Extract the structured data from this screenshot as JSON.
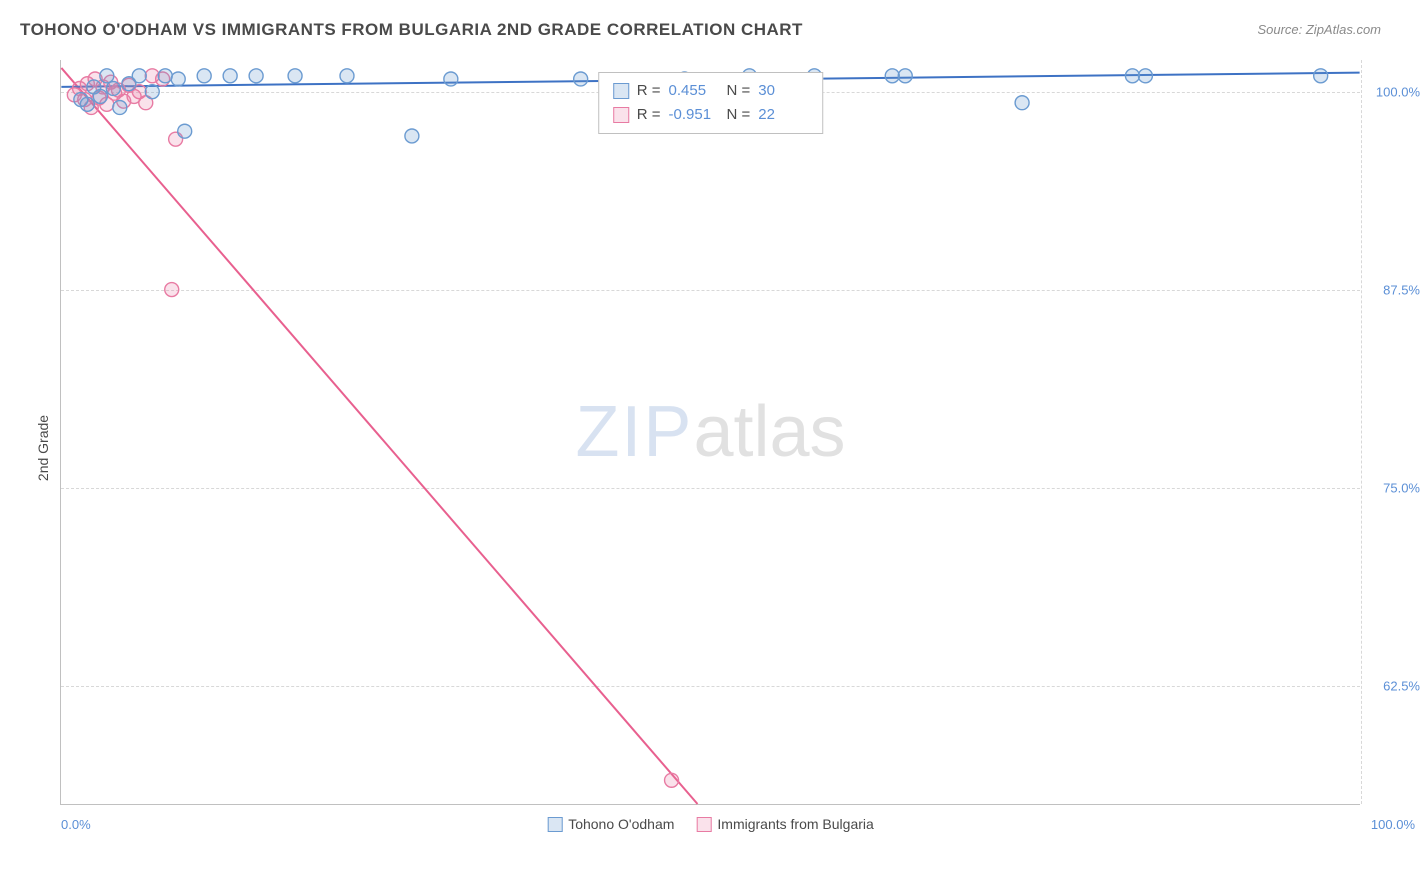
{
  "title": "TOHONO O'ODHAM VS IMMIGRANTS FROM BULGARIA 2ND GRADE CORRELATION CHART",
  "source": "Source: ZipAtlas.com",
  "ylabel": "2nd Grade",
  "watermark": {
    "part1": "ZIP",
    "part2": "atlas"
  },
  "chart": {
    "type": "scatter",
    "xlim": [
      0,
      100
    ],
    "ylim": [
      55,
      102
    ],
    "background_color": "#ffffff",
    "grid_color": "#d8d8d8",
    "axis_color": "#c0c0c0",
    "tick_color": "#5b8fd6",
    "y_ticks": [
      {
        "value": 100.0,
        "label": "100.0%"
      },
      {
        "value": 87.5,
        "label": "87.5%"
      },
      {
        "value": 75.0,
        "label": "75.0%"
      },
      {
        "value": 62.5,
        "label": "62.5%"
      }
    ],
    "x_ticks": [
      {
        "value": 0,
        "label": "0.0%"
      },
      {
        "value": 100,
        "label": "100.0%"
      }
    ],
    "marker_radius": 7,
    "marker_stroke_width": 1.4,
    "marker_fill_opacity": 0.18,
    "line_width": 2
  },
  "legend": {
    "series1": "Tohono O'odham",
    "series2": "Immigrants from Bulgaria"
  },
  "stats": {
    "r_label": "R =",
    "n_label": "N =",
    "series1": {
      "r": "0.455",
      "n": "30"
    },
    "series2": {
      "r": "-0.951",
      "n": "22"
    }
  },
  "series": [
    {
      "name": "Tohono O'odham",
      "color": "#6b9bd1",
      "fill": "rgba(107,155,209,0.25)",
      "line_color": "#3d72c4",
      "trend": {
        "x1": 0,
        "y1": 100.3,
        "x2": 100,
        "y2": 101.2
      },
      "points": [
        {
          "x": 1.5,
          "y": 99.5
        },
        {
          "x": 2.0,
          "y": 99.2
        },
        {
          "x": 2.5,
          "y": 100.3
        },
        {
          "x": 3.0,
          "y": 99.7
        },
        {
          "x": 3.5,
          "y": 101.0
        },
        {
          "x": 4.0,
          "y": 100.2
        },
        {
          "x": 4.5,
          "y": 99.0
        },
        {
          "x": 5.2,
          "y": 100.5
        },
        {
          "x": 6.0,
          "y": 101.0
        },
        {
          "x": 7.0,
          "y": 100.0
        },
        {
          "x": 8.0,
          "y": 101.0
        },
        {
          "x": 9.0,
          "y": 100.8
        },
        {
          "x": 9.5,
          "y": 97.5
        },
        {
          "x": 11.0,
          "y": 101.0
        },
        {
          "x": 13.0,
          "y": 101.0
        },
        {
          "x": 15.0,
          "y": 101.0
        },
        {
          "x": 18.0,
          "y": 101.0
        },
        {
          "x": 22.0,
          "y": 101.0
        },
        {
          "x": 27.0,
          "y": 97.2
        },
        {
          "x": 30.0,
          "y": 100.8
        },
        {
          "x": 40.0,
          "y": 100.8
        },
        {
          "x": 48.0,
          "y": 100.8
        },
        {
          "x": 53.0,
          "y": 101.0
        },
        {
          "x": 58.0,
          "y": 101.0
        },
        {
          "x": 64.0,
          "y": 101.0
        },
        {
          "x": 65.0,
          "y": 101.0
        },
        {
          "x": 74.0,
          "y": 99.3
        },
        {
          "x": 82.5,
          "y": 101.0
        },
        {
          "x": 83.5,
          "y": 101.0
        },
        {
          "x": 97.0,
          "y": 101.0
        }
      ]
    },
    {
      "name": "Immigrants from Bulgaria",
      "color": "#e87ba3",
      "fill": "rgba(232,123,163,0.22)",
      "line_color": "#e8608f",
      "trend": {
        "x1": 0,
        "y1": 101.5,
        "x2": 49,
        "y2": 55
      },
      "points": [
        {
          "x": 1.0,
          "y": 99.8
        },
        {
          "x": 1.4,
          "y": 100.2
        },
        {
          "x": 1.8,
          "y": 99.5
        },
        {
          "x": 2.0,
          "y": 100.5
        },
        {
          "x": 2.3,
          "y": 99.0
        },
        {
          "x": 2.6,
          "y": 100.8
        },
        {
          "x": 2.9,
          "y": 99.6
        },
        {
          "x": 3.2,
          "y": 100.3
        },
        {
          "x": 3.5,
          "y": 99.2
        },
        {
          "x": 3.8,
          "y": 100.6
        },
        {
          "x": 4.1,
          "y": 99.9
        },
        {
          "x": 4.4,
          "y": 100.1
        },
        {
          "x": 4.8,
          "y": 99.4
        },
        {
          "x": 5.2,
          "y": 100.4
        },
        {
          "x": 5.6,
          "y": 99.7
        },
        {
          "x": 6.0,
          "y": 100.0
        },
        {
          "x": 6.5,
          "y": 99.3
        },
        {
          "x": 7.0,
          "y": 101.0
        },
        {
          "x": 7.8,
          "y": 100.8
        },
        {
          "x": 8.8,
          "y": 97.0
        },
        {
          "x": 8.5,
          "y": 87.5
        },
        {
          "x": 47.0,
          "y": 56.5
        }
      ]
    }
  ]
}
